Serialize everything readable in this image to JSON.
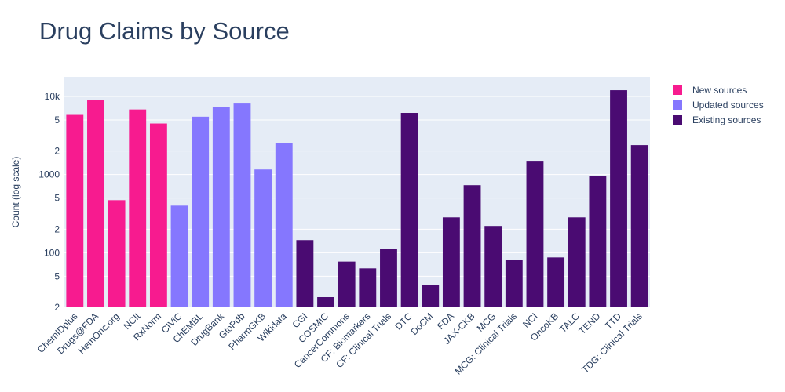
{
  "chart_data": {
    "type": "bar",
    "title": "Drug Claims by Source",
    "y_label": "Count (log scale)",
    "log_y": true,
    "grid": true,
    "legend": "upper right",
    "categories": [
      "ChemIDplus",
      "Drugs@FDA",
      "HemOnc.org",
      "NCIt",
      "RxNorm",
      "CIViC",
      "ChEMBL",
      "DrugBank",
      "GtoPdb",
      "PharmGKB",
      "Wikidata",
      "CGI",
      "COSMIC",
      "CancerCommons",
      "CF: Biomarkers",
      "CF: Clinical Trials",
      "DTC",
      "DoCM",
      "FDA",
      "JAX-CKB",
      "MCG",
      "MCG: Clinical Trials",
      "NCI",
      "OncoKB",
      "TALC",
      "TEND",
      "TTD",
      "TDG: Clinical Trials"
    ],
    "series": [
      {
        "name": "New sources",
        "color": "#f71b8f",
        "values": [
          5800,
          8900,
          470,
          6800,
          4500,
          null,
          null,
          null,
          null,
          null,
          null,
          null,
          null,
          null,
          null,
          null,
          null,
          null,
          null,
          null,
          null,
          null,
          null,
          null,
          null,
          null,
          null,
          null
        ]
      },
      {
        "name": "Updated sources",
        "color": "#8577fe",
        "values": [
          null,
          null,
          null,
          null,
          null,
          400,
          5500,
          7400,
          8100,
          1160,
          2550,
          null,
          null,
          null,
          null,
          null,
          null,
          null,
          null,
          null,
          null,
          null,
          null,
          null,
          null,
          null,
          null,
          null
        ]
      },
      {
        "name": "Existing sources",
        "color": "#4a0b72",
        "values": [
          null,
          null,
          null,
          null,
          null,
          null,
          null,
          null,
          null,
          null,
          null,
          145,
          27,
          77,
          63,
          112,
          6150,
          39,
          283,
          731,
          220,
          81,
          1500,
          87,
          283,
          966,
          12000,
          2380
        ]
      }
    ],
    "ylim": [
      20,
      17800
    ],
    "yticks": [
      {
        "value": 20,
        "label": "2"
      },
      {
        "value": 50,
        "label": "5"
      },
      100,
      {
        "value": 200,
        "label": "2"
      },
      {
        "value": 500,
        "label": "5"
      },
      1000,
      {
        "value": 2000,
        "label": "2"
      },
      {
        "value": 5000,
        "label": "5"
      },
      {
        "value": 10000,
        "label": "10k"
      }
    ]
  }
}
